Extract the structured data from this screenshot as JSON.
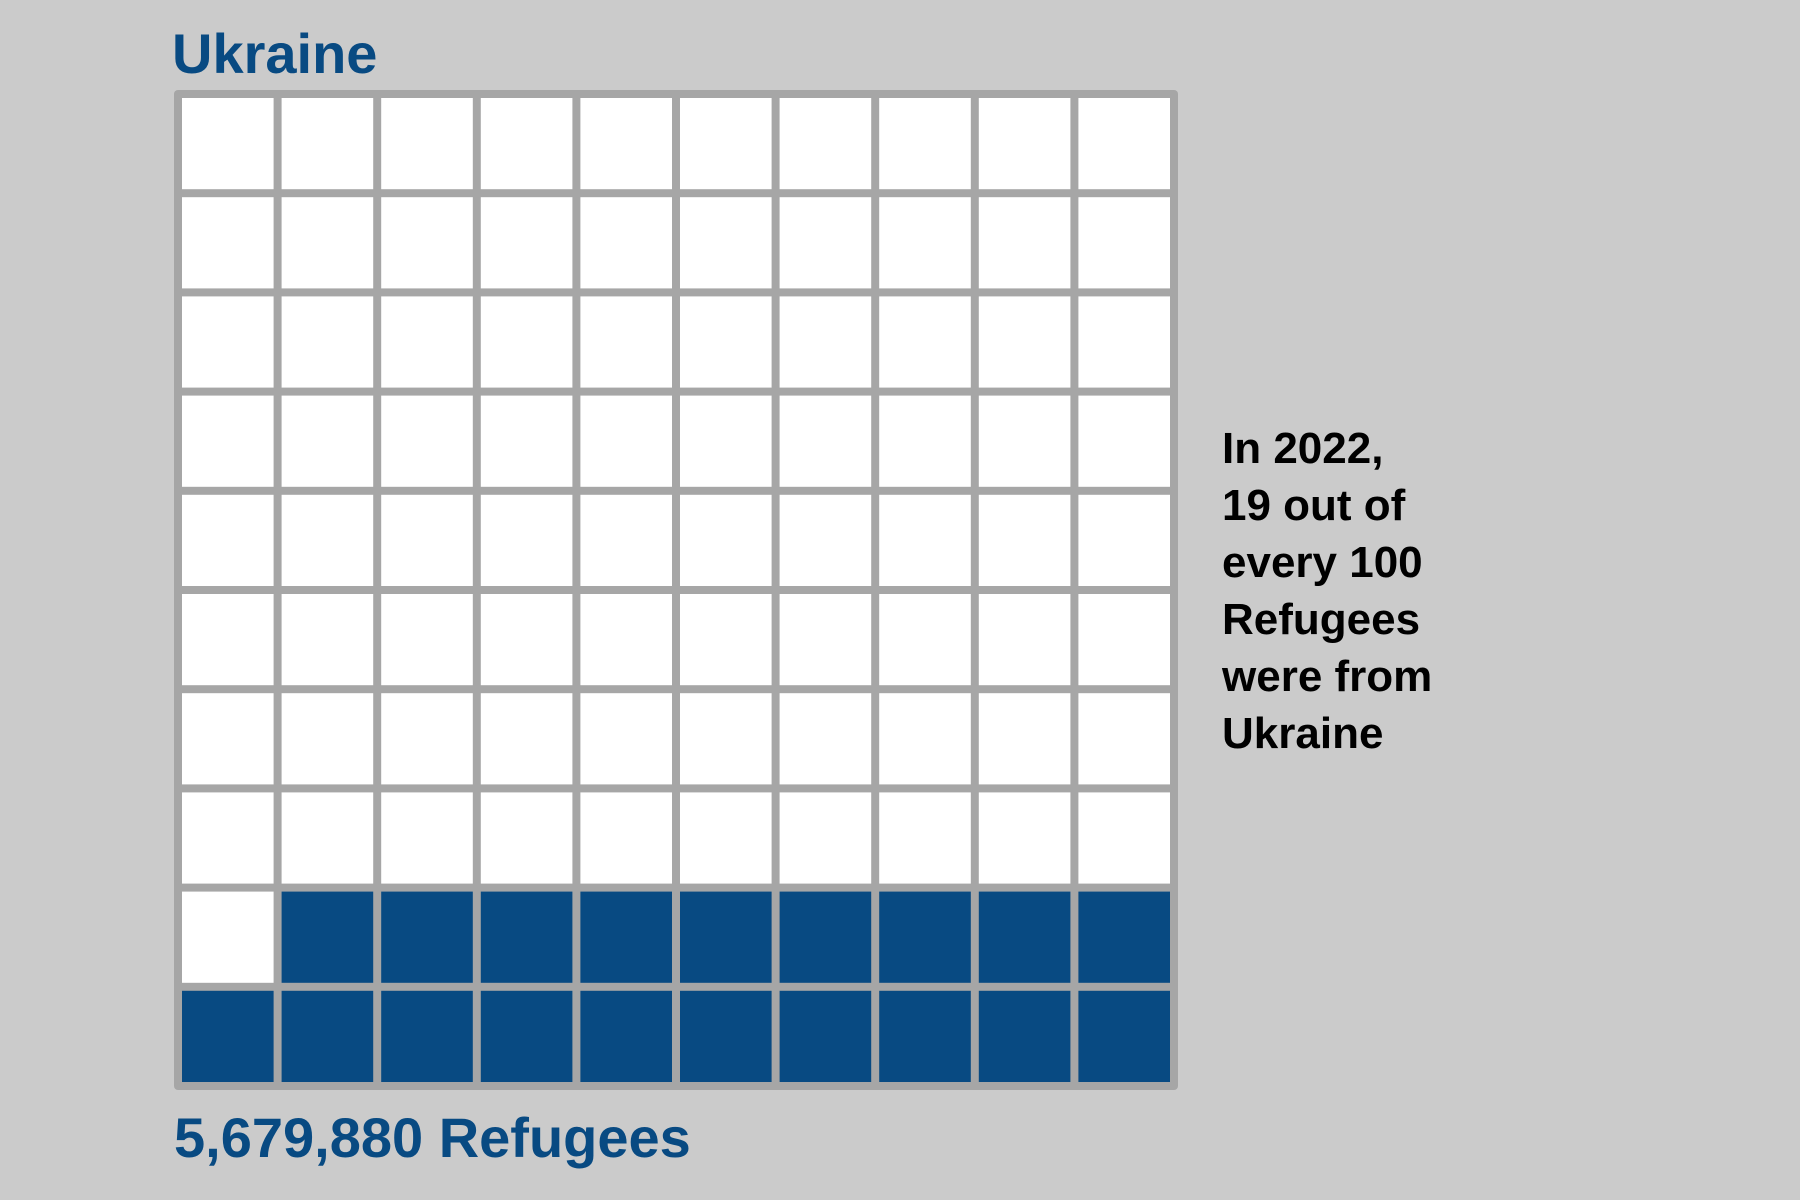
{
  "title": "Ukraine",
  "footer": {
    "value": "5,679,880",
    "unit": "Refugees"
  },
  "note": {
    "lines": [
      "In 2022,",
      "19 out of",
      "every 100",
      "Refugees",
      "were from",
      "Ukraine"
    ]
  },
  "colors": {
    "background": "#cbcbcb",
    "filled": "#084a82",
    "empty": "#ffffff",
    "grid": "#a6a6a6"
  },
  "chart_data": {
    "type": "waffle",
    "title": "Ukraine",
    "rows": 10,
    "columns": 10,
    "total_cells": 100,
    "filled_cells": 19,
    "fill_order": "bottom-right-first, right-to-left, bottom-to-top",
    "label": "5,679,880 Refugees"
  }
}
